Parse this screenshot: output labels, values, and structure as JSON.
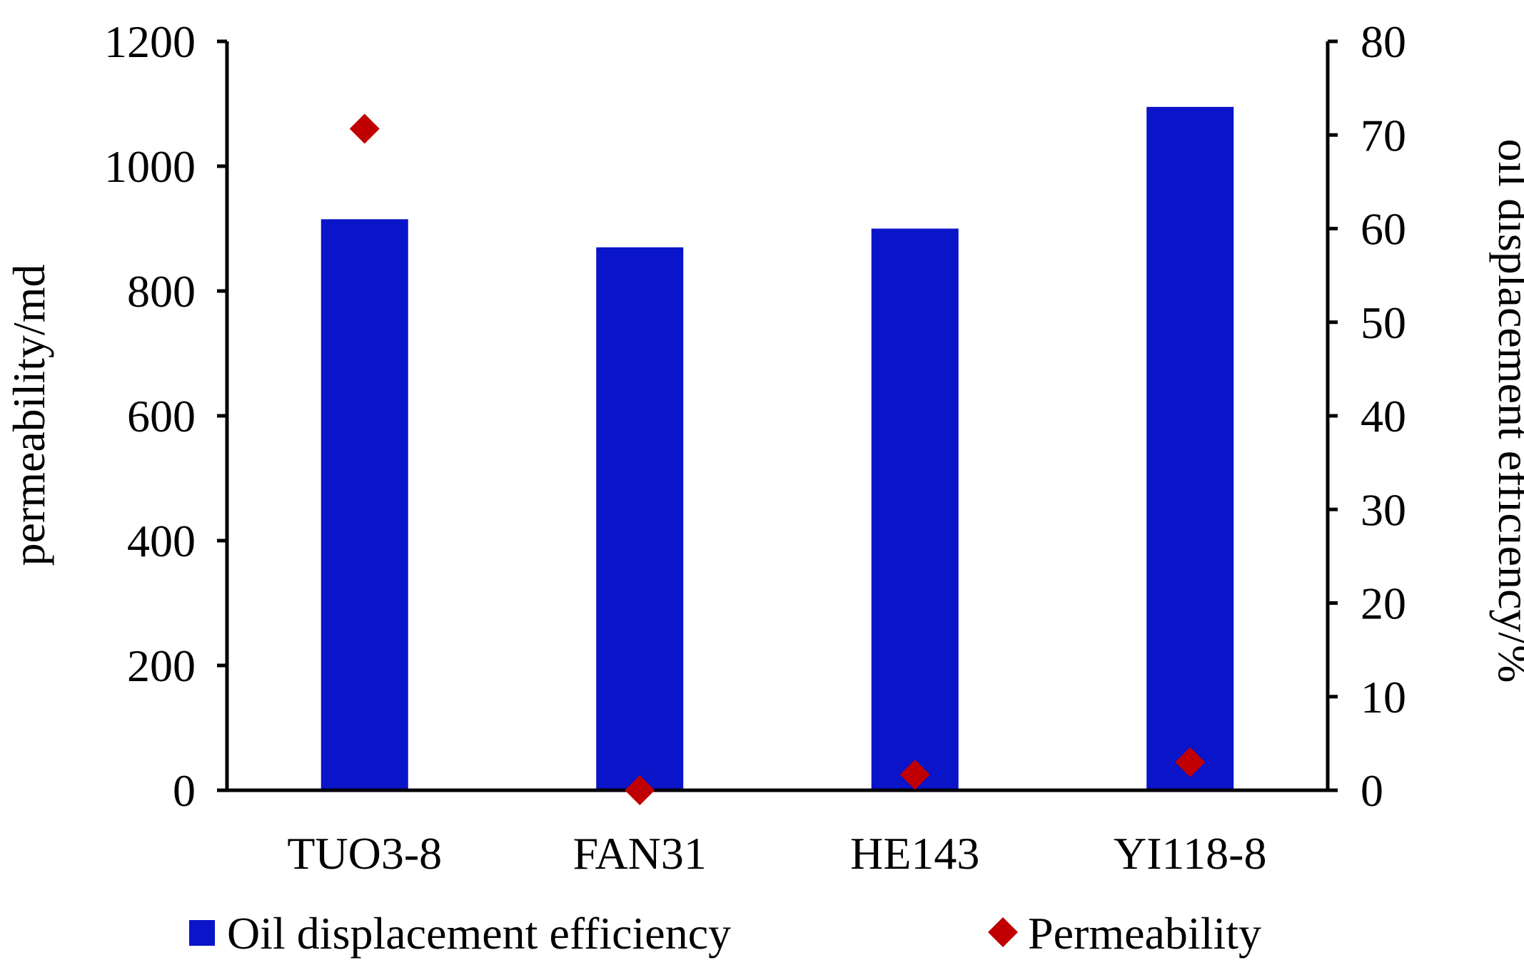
{
  "chart_data": {
    "type": "bar",
    "categories": [
      "TUO3-8",
      "FAN31",
      "HE143",
      "YI118-8"
    ],
    "series": [
      {
        "name": "Oil displacement efficiency",
        "kind": "bar",
        "axis": "right",
        "color": "#0a14c8",
        "values": [
          61,
          58,
          60,
          73
        ]
      },
      {
        "name": "Permeability",
        "kind": "scatter",
        "marker": "diamond",
        "axis": "left",
        "color": "#c00000",
        "values": [
          1060,
          0,
          25,
          45
        ]
      }
    ],
    "left_axis": {
      "title": "permeability/md",
      "range": [
        0,
        1200
      ],
      "ticks": [
        "0",
        "200",
        "400",
        "600",
        "800",
        "1000",
        "1200"
      ]
    },
    "right_axis": {
      "title": "oil displacement efficiency/%",
      "range": [
        0,
        80
      ],
      "ticks": [
        "0",
        "10",
        "20",
        "30",
        "40",
        "50",
        "60",
        "70",
        "80"
      ]
    },
    "grid": false,
    "legend": {
      "placement": "bottom",
      "items": [
        "Oil displacement efficiency",
        "Permeability"
      ]
    }
  }
}
